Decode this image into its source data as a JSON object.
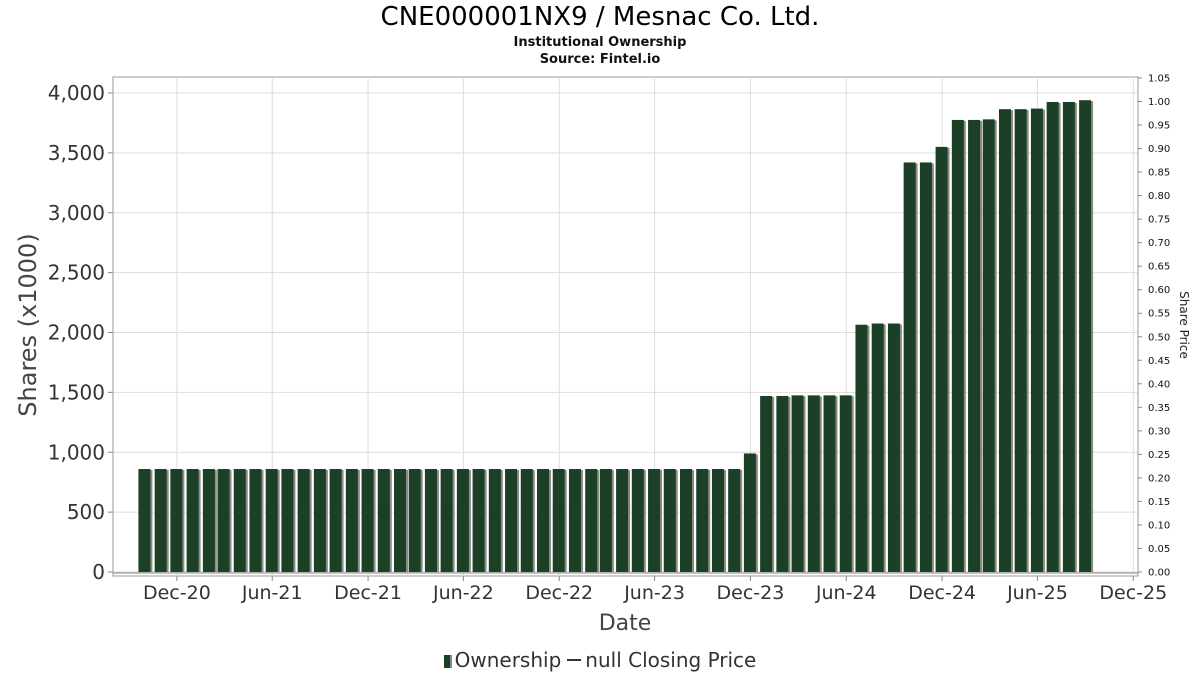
{
  "header": {
    "title": "CNE000001NX9 / Mesnac Co. Ltd.",
    "subtitle": "Institutional Ownership",
    "source": "Source: Fintel.io"
  },
  "legend": {
    "ownership_label": "Ownership",
    "price_label": "null Closing Price"
  },
  "colors": {
    "bar": "#1b4025",
    "bar_shadow": "#8a8a8a",
    "grid": "#dddddd",
    "plot_border": "#999999"
  },
  "chart_data": {
    "type": "bar",
    "xlabel": "Date",
    "ylabel": "Shares (x1000)",
    "y2label": "Share Price",
    "ylim": [
      0,
      4150
    ],
    "y2lim": [
      0,
      1.05
    ],
    "x_range": [
      "2020-08-01",
      "2025-12-10"
    ],
    "grid": true,
    "legend_position": "bottom",
    "y_ticks": [
      0,
      500,
      1000,
      1500,
      2000,
      2500,
      3000,
      3500,
      4000
    ],
    "y_tick_labels": [
      "0",
      "500",
      "1,000",
      "1,500",
      "2,000",
      "2,500",
      "3,000",
      "3,500",
      "4,000"
    ],
    "y2_ticks": [
      "0.00",
      "0.05",
      "0.10",
      "0.15",
      "0.20",
      "0.25",
      "0.30",
      "0.35",
      "0.40",
      "0.45",
      "0.50",
      "0.55",
      "0.60",
      "0.65",
      "0.70",
      "0.75",
      "0.80",
      "0.85",
      "0.90",
      "0.95",
      "1.00",
      "1.05"
    ],
    "x_ticks": [
      {
        "date": "2020-12-01",
        "label": "Dec-20"
      },
      {
        "date": "2021-06-01",
        "label": "Jun-21"
      },
      {
        "date": "2021-12-01",
        "label": "Dec-21"
      },
      {
        "date": "2022-06-01",
        "label": "Jun-22"
      },
      {
        "date": "2022-12-01",
        "label": "Dec-22"
      },
      {
        "date": "2023-06-01",
        "label": "Jun-23"
      },
      {
        "date": "2023-12-01",
        "label": "Dec-23"
      },
      {
        "date": "2024-06-01",
        "label": "Jun-24"
      },
      {
        "date": "2024-12-01",
        "label": "Dec-24"
      },
      {
        "date": "2025-06-01",
        "label": "Jun-25"
      },
      {
        "date": "2025-12-01",
        "label": "Dec-25"
      }
    ],
    "series": [
      {
        "name": "Ownership",
        "values": [
          [
            "2020-09-30",
            860
          ],
          [
            "2020-10-31",
            860
          ],
          [
            "2020-11-30",
            860
          ],
          [
            "2020-12-31",
            860
          ],
          [
            "2021-01-31",
            860
          ],
          [
            "2021-02-28",
            860
          ],
          [
            "2021-03-31",
            860
          ],
          [
            "2021-04-30",
            860
          ],
          [
            "2021-05-31",
            860
          ],
          [
            "2021-06-30",
            860
          ],
          [
            "2021-07-31",
            860
          ],
          [
            "2021-08-31",
            860
          ],
          [
            "2021-09-30",
            860
          ],
          [
            "2021-10-31",
            860
          ],
          [
            "2021-11-30",
            860
          ],
          [
            "2021-12-31",
            860
          ],
          [
            "2022-01-31",
            860
          ],
          [
            "2022-02-28",
            860
          ],
          [
            "2022-03-31",
            860
          ],
          [
            "2022-04-30",
            860
          ],
          [
            "2022-05-31",
            860
          ],
          [
            "2022-06-30",
            860
          ],
          [
            "2022-07-31",
            860
          ],
          [
            "2022-08-31",
            860
          ],
          [
            "2022-09-30",
            860
          ],
          [
            "2022-10-31",
            860
          ],
          [
            "2022-11-30",
            860
          ],
          [
            "2022-12-31",
            860
          ],
          [
            "2023-01-31",
            860
          ],
          [
            "2023-02-28",
            860
          ],
          [
            "2023-03-31",
            860
          ],
          [
            "2023-04-30",
            860
          ],
          [
            "2023-05-31",
            860
          ],
          [
            "2023-06-30",
            860
          ],
          [
            "2023-07-31",
            860
          ],
          [
            "2023-08-31",
            860
          ],
          [
            "2023-09-30",
            860
          ],
          [
            "2023-10-31",
            860
          ],
          [
            "2023-11-30",
            990
          ],
          [
            "2023-12-31",
            1470
          ],
          [
            "2024-01-31",
            1470
          ],
          [
            "2024-02-29",
            1475
          ],
          [
            "2024-03-31",
            1475
          ],
          [
            "2024-04-30",
            1475
          ],
          [
            "2024-05-31",
            1475
          ],
          [
            "2024-06-30",
            2065
          ],
          [
            "2024-07-31",
            2075
          ],
          [
            "2024-08-31",
            2075
          ],
          [
            "2024-09-30",
            3420
          ],
          [
            "2024-10-31",
            3420
          ],
          [
            "2024-11-30",
            3550
          ],
          [
            "2024-12-31",
            3775
          ],
          [
            "2025-01-31",
            3775
          ],
          [
            "2025-02-28",
            3780
          ],
          [
            "2025-03-31",
            3865
          ],
          [
            "2025-04-30",
            3865
          ],
          [
            "2025-05-31",
            3870
          ],
          [
            "2025-06-30",
            3925
          ],
          [
            "2025-07-31",
            3925
          ],
          [
            "2025-08-31",
            3940
          ]
        ]
      }
    ]
  }
}
